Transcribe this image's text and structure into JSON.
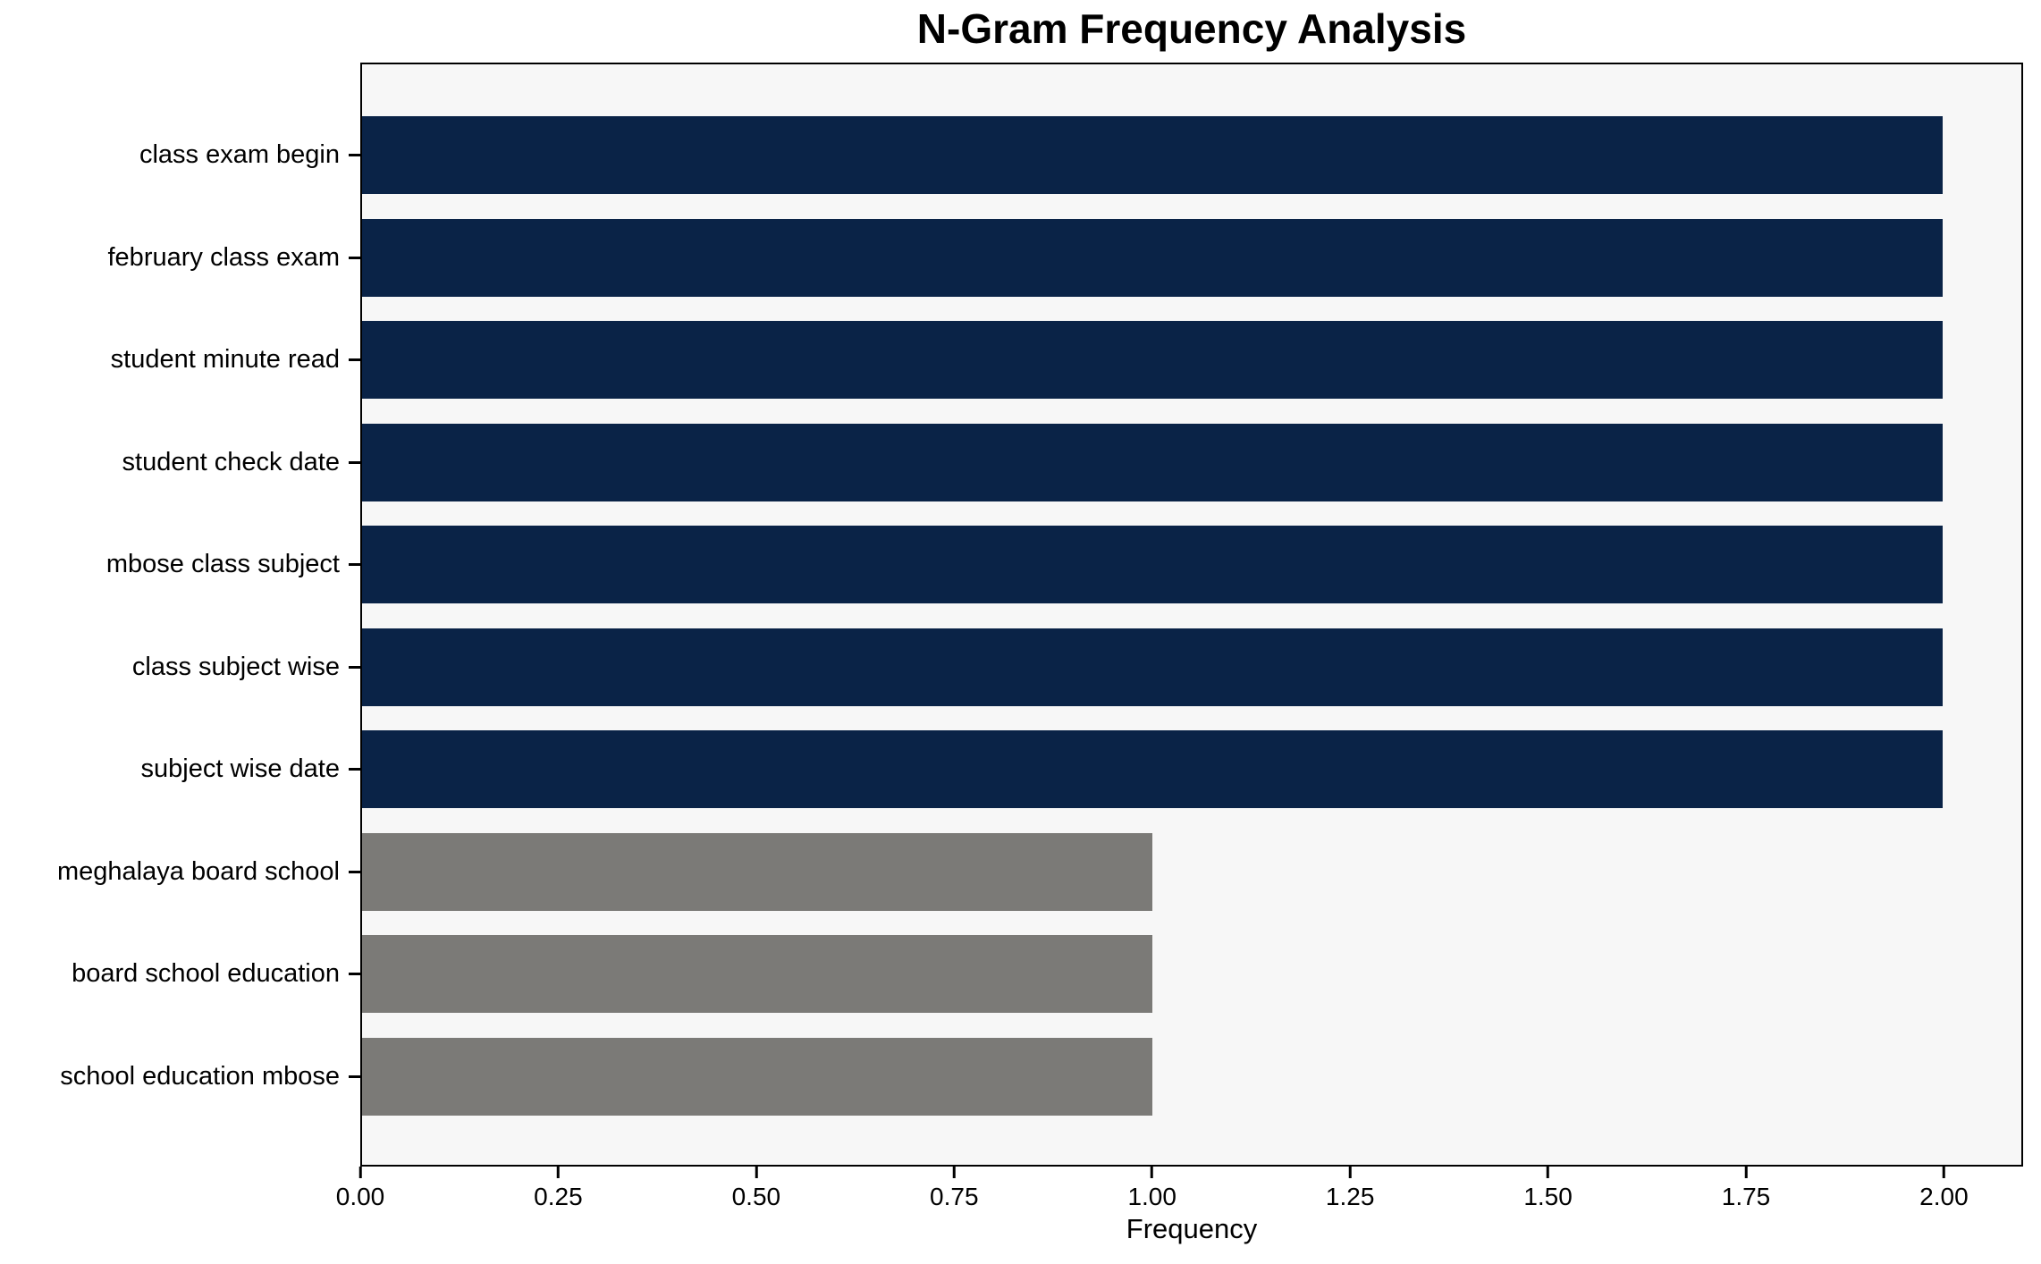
{
  "chart_data": {
    "type": "bar",
    "orientation": "horizontal",
    "title": "N-Gram Frequency Analysis",
    "xlabel": "Frequency",
    "ylabel": "",
    "xlim": [
      0,
      2.1
    ],
    "grid": false,
    "legend": "none",
    "plot_background": "#f7f7f7",
    "spine_color": "#000000",
    "palette": {
      "navy": "#0a2347",
      "gray": "#7b7a77"
    },
    "categories": [
      "class exam begin",
      "february class exam",
      "student minute read",
      "student check date",
      "mbose class subject",
      "class subject wise",
      "subject wise date",
      "meghalaya board school",
      "board school education",
      "school education mbose"
    ],
    "values": [
      2,
      2,
      2,
      2,
      2,
      2,
      2,
      1,
      1,
      1
    ],
    "bars": [
      {
        "label": "class exam begin",
        "value": 2,
        "color": "navy"
      },
      {
        "label": "february class exam",
        "value": 2,
        "color": "navy"
      },
      {
        "label": "student minute read",
        "value": 2,
        "color": "navy"
      },
      {
        "label": "student check date",
        "value": 2,
        "color": "navy"
      },
      {
        "label": "mbose class subject",
        "value": 2,
        "color": "navy"
      },
      {
        "label": "class subject wise",
        "value": 2,
        "color": "navy"
      },
      {
        "label": "subject wise date",
        "value": 2,
        "color": "navy"
      },
      {
        "label": "meghalaya board school",
        "value": 1,
        "color": "gray"
      },
      {
        "label": "board school education",
        "value": 1,
        "color": "gray"
      },
      {
        "label": "school education mbose",
        "value": 1,
        "color": "gray"
      }
    ],
    "x_ticks": [
      {
        "label": "0.00",
        "value": 0.0
      },
      {
        "label": "0.25",
        "value": 0.25
      },
      {
        "label": "0.50",
        "value": 0.5
      },
      {
        "label": "0.75",
        "value": 0.75
      },
      {
        "label": "1.00",
        "value": 1.0
      },
      {
        "label": "1.25",
        "value": 1.25
      },
      {
        "label": "1.50",
        "value": 1.5
      },
      {
        "label": "1.75",
        "value": 1.75
      },
      {
        "label": "2.00",
        "value": 2.0
      }
    ]
  }
}
